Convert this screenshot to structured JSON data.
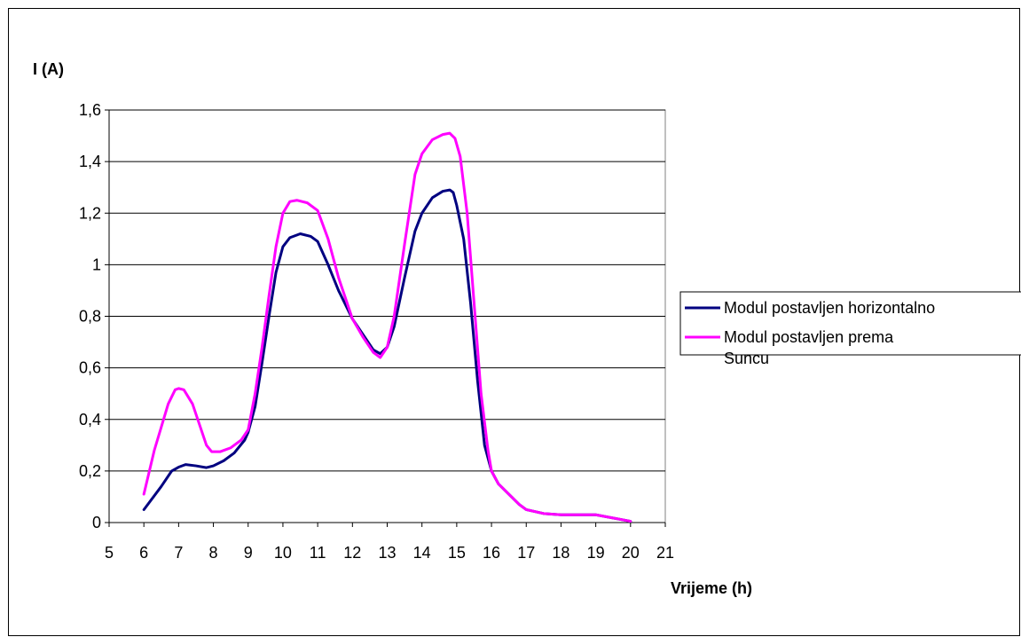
{
  "chart_data": {
    "type": "line",
    "title": "",
    "xlabel": "Vrijeme (h)",
    "ylabel": "I (A)",
    "xlim": [
      5,
      21
    ],
    "ylim": [
      0,
      1.6
    ],
    "x_ticks": [
      "5",
      "6",
      "7",
      "8",
      "9",
      "10",
      "11",
      "12",
      "13",
      "14",
      "15",
      "16",
      "17",
      "18",
      "19",
      "20",
      "21"
    ],
    "y_ticks": [
      "0",
      "0,2",
      "0,4",
      "0,6",
      "0,8",
      "1",
      "1,2",
      "1,4",
      "1,6"
    ],
    "grid": "horizontal",
    "legend_position": "right",
    "series": [
      {
        "name": "Modul postavljen horizontalno",
        "color": "#000080",
        "points": [
          [
            6,
            0.05
          ],
          [
            6.5,
            0.14
          ],
          [
            6.8,
            0.2
          ],
          [
            7.0,
            0.215
          ],
          [
            7.2,
            0.225
          ],
          [
            7.5,
            0.22
          ],
          [
            7.8,
            0.213
          ],
          [
            8.0,
            0.22
          ],
          [
            8.3,
            0.24
          ],
          [
            8.6,
            0.27
          ],
          [
            8.9,
            0.32
          ],
          [
            9.0,
            0.35
          ],
          [
            9.2,
            0.45
          ],
          [
            9.4,
            0.62
          ],
          [
            9.6,
            0.8
          ],
          [
            9.8,
            0.97
          ],
          [
            10.0,
            1.07
          ],
          [
            10.2,
            1.105
          ],
          [
            10.5,
            1.12
          ],
          [
            10.8,
            1.11
          ],
          [
            11.0,
            1.09
          ],
          [
            11.3,
            1.0
          ],
          [
            11.6,
            0.9
          ],
          [
            12.0,
            0.79
          ],
          [
            12.3,
            0.73
          ],
          [
            12.6,
            0.67
          ],
          [
            12.8,
            0.655
          ],
          [
            13.0,
            0.68
          ],
          [
            13.2,
            0.76
          ],
          [
            13.5,
            0.95
          ],
          [
            13.8,
            1.13
          ],
          [
            14.0,
            1.2
          ],
          [
            14.3,
            1.26
          ],
          [
            14.6,
            1.285
          ],
          [
            14.8,
            1.29
          ],
          [
            14.9,
            1.28
          ],
          [
            15.0,
            1.23
          ],
          [
            15.2,
            1.1
          ],
          [
            15.4,
            0.85
          ],
          [
            15.6,
            0.55
          ],
          [
            15.8,
            0.3
          ],
          [
            16.0,
            0.2
          ],
          [
            16.2,
            0.15
          ],
          [
            16.5,
            0.11
          ],
          [
            16.8,
            0.07
          ],
          [
            17.0,
            0.05
          ],
          [
            17.5,
            0.035
          ],
          [
            18,
            0.03
          ],
          [
            19,
            0.03
          ],
          [
            20,
            0.005
          ]
        ]
      },
      {
        "name": "Modul postavljen prema Suncu",
        "color": "#ff00ff",
        "points": [
          [
            6,
            0.11
          ],
          [
            6.3,
            0.28
          ],
          [
            6.7,
            0.46
          ],
          [
            6.9,
            0.515
          ],
          [
            7.0,
            0.52
          ],
          [
            7.15,
            0.515
          ],
          [
            7.4,
            0.46
          ],
          [
            7.6,
            0.38
          ],
          [
            7.8,
            0.3
          ],
          [
            7.95,
            0.275
          ],
          [
            8.2,
            0.275
          ],
          [
            8.5,
            0.29
          ],
          [
            8.8,
            0.32
          ],
          [
            9.0,
            0.36
          ],
          [
            9.2,
            0.5
          ],
          [
            9.4,
            0.68
          ],
          [
            9.6,
            0.88
          ],
          [
            9.8,
            1.07
          ],
          [
            10.0,
            1.2
          ],
          [
            10.2,
            1.245
          ],
          [
            10.4,
            1.25
          ],
          [
            10.7,
            1.24
          ],
          [
            11.0,
            1.21
          ],
          [
            11.3,
            1.1
          ],
          [
            11.6,
            0.95
          ],
          [
            12.0,
            0.79
          ],
          [
            12.3,
            0.72
          ],
          [
            12.6,
            0.66
          ],
          [
            12.8,
            0.64
          ],
          [
            13.0,
            0.68
          ],
          [
            13.2,
            0.8
          ],
          [
            13.5,
            1.08
          ],
          [
            13.8,
            1.35
          ],
          [
            14.0,
            1.43
          ],
          [
            14.3,
            1.485
          ],
          [
            14.6,
            1.505
          ],
          [
            14.8,
            1.51
          ],
          [
            14.95,
            1.49
          ],
          [
            15.1,
            1.42
          ],
          [
            15.3,
            1.2
          ],
          [
            15.5,
            0.85
          ],
          [
            15.7,
            0.5
          ],
          [
            15.9,
            0.28
          ],
          [
            16.0,
            0.2
          ],
          [
            16.2,
            0.15
          ],
          [
            16.5,
            0.11
          ],
          [
            16.8,
            0.07
          ],
          [
            17.0,
            0.05
          ],
          [
            17.5,
            0.035
          ],
          [
            18,
            0.03
          ],
          [
            19,
            0.03
          ],
          [
            20,
            0.005
          ]
        ]
      }
    ]
  }
}
